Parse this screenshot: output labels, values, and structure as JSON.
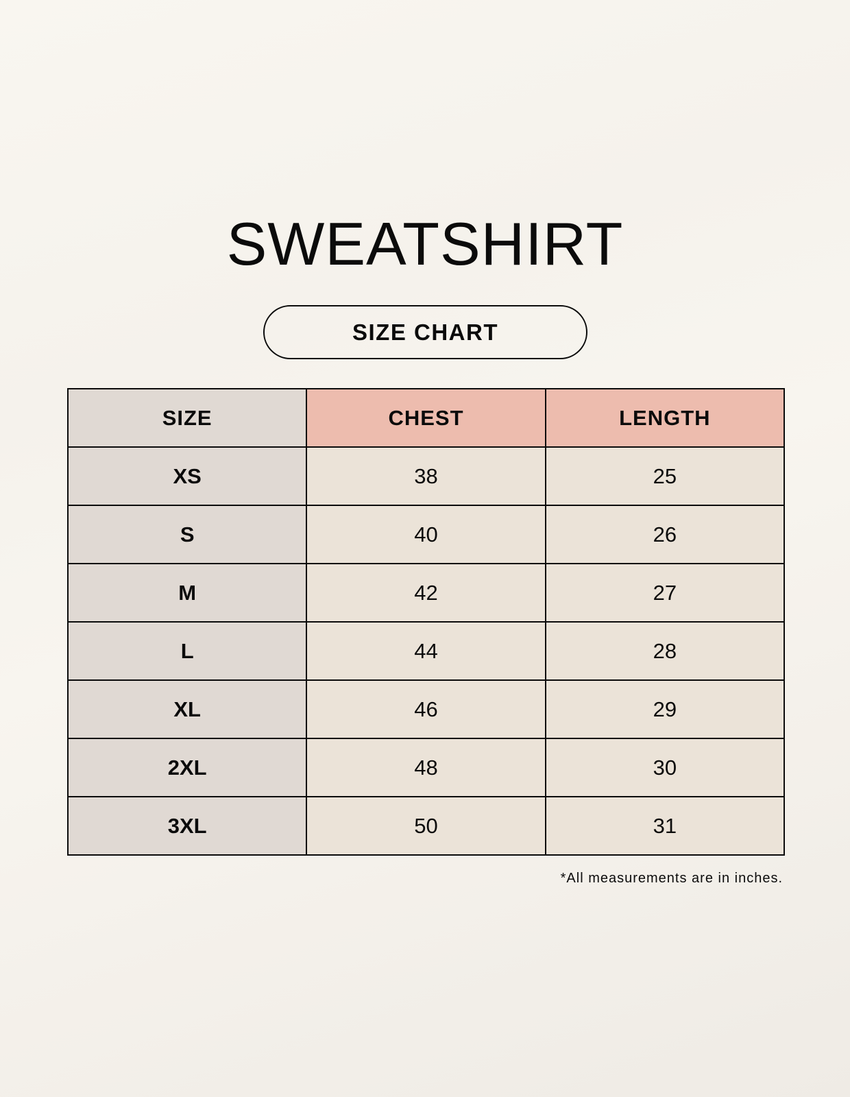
{
  "title": "SWEATSHIRT",
  "subtitle": "SIZE CHART",
  "table": {
    "headers": [
      "SIZE",
      "CHEST",
      "LENGTH"
    ],
    "rows": [
      [
        "XS",
        "38",
        "25"
      ],
      [
        "S",
        "40",
        "26"
      ],
      [
        "M",
        "42",
        "27"
      ],
      [
        "L",
        "44",
        "28"
      ],
      [
        "XL",
        "46",
        "29"
      ],
      [
        "2XL",
        "48",
        "30"
      ],
      [
        "3XL",
        "50",
        "31"
      ]
    ]
  },
  "note": "*All measurements are in inches.",
  "colors": {
    "size_column": "#e0d9d3",
    "header_accent": "#edbcae",
    "cell": "#ebe3d8",
    "background": "#f8f5ef"
  }
}
